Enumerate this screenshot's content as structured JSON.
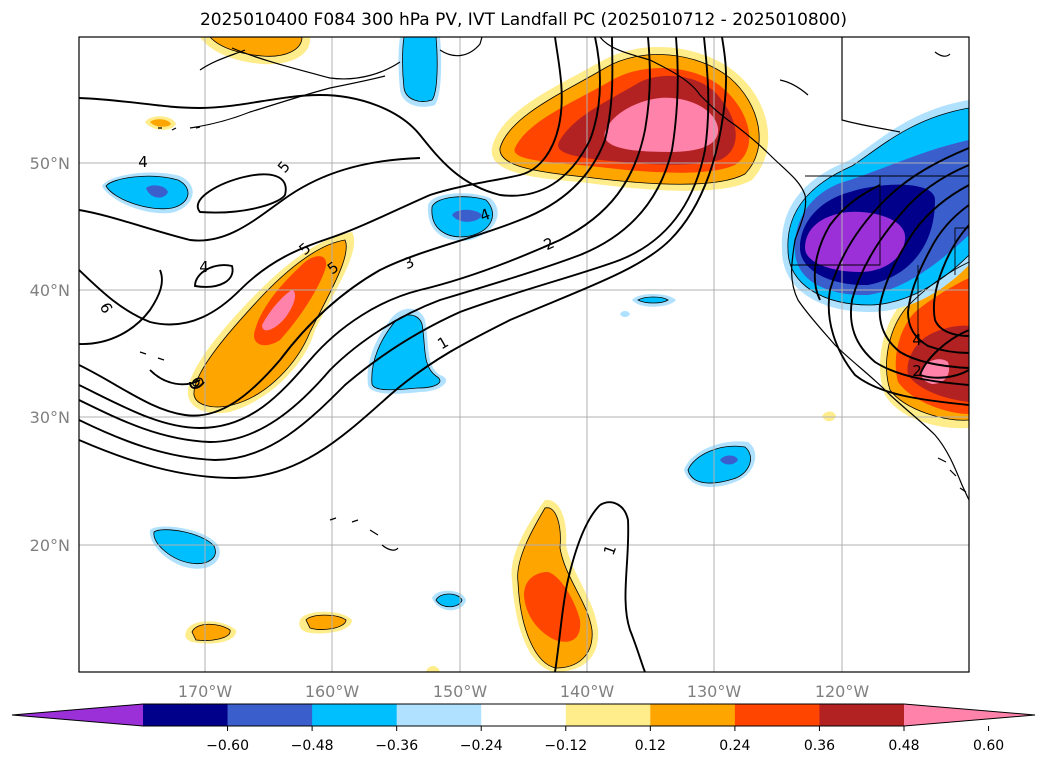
{
  "title": "2025010400 F084 300 hPa PV, IVT Landfall PC (2025010712 - 2025010800)",
  "lat_labels": [
    "50°N",
    "40°N",
    "30°N",
    "20°N"
  ],
  "lon_labels": [
    "170°W",
    "160°W",
    "150°W",
    "140°W",
    "130°W",
    "120°W"
  ],
  "contour_labels": [
    "4",
    "5",
    "4",
    "5",
    "5",
    "3",
    "2",
    "6",
    "6",
    "4",
    "1",
    "1",
    "4",
    "2"
  ],
  "colorbar": {
    "ticks": [
      "−0.60",
      "−0.48",
      "−0.36",
      "−0.24",
      "−0.12",
      "0.12",
      "0.24",
      "0.36",
      "0.48",
      "0.60"
    ],
    "colors": [
      "#9b30d9",
      "#00008b",
      "#3a5fcd",
      "#00bfff",
      "#b0e2ff",
      "#ffffff",
      "#ffec8b",
      "#ffa500",
      "#ff4500",
      "#b22222",
      "#ff82ab"
    ],
    "extend": "both"
  }
}
